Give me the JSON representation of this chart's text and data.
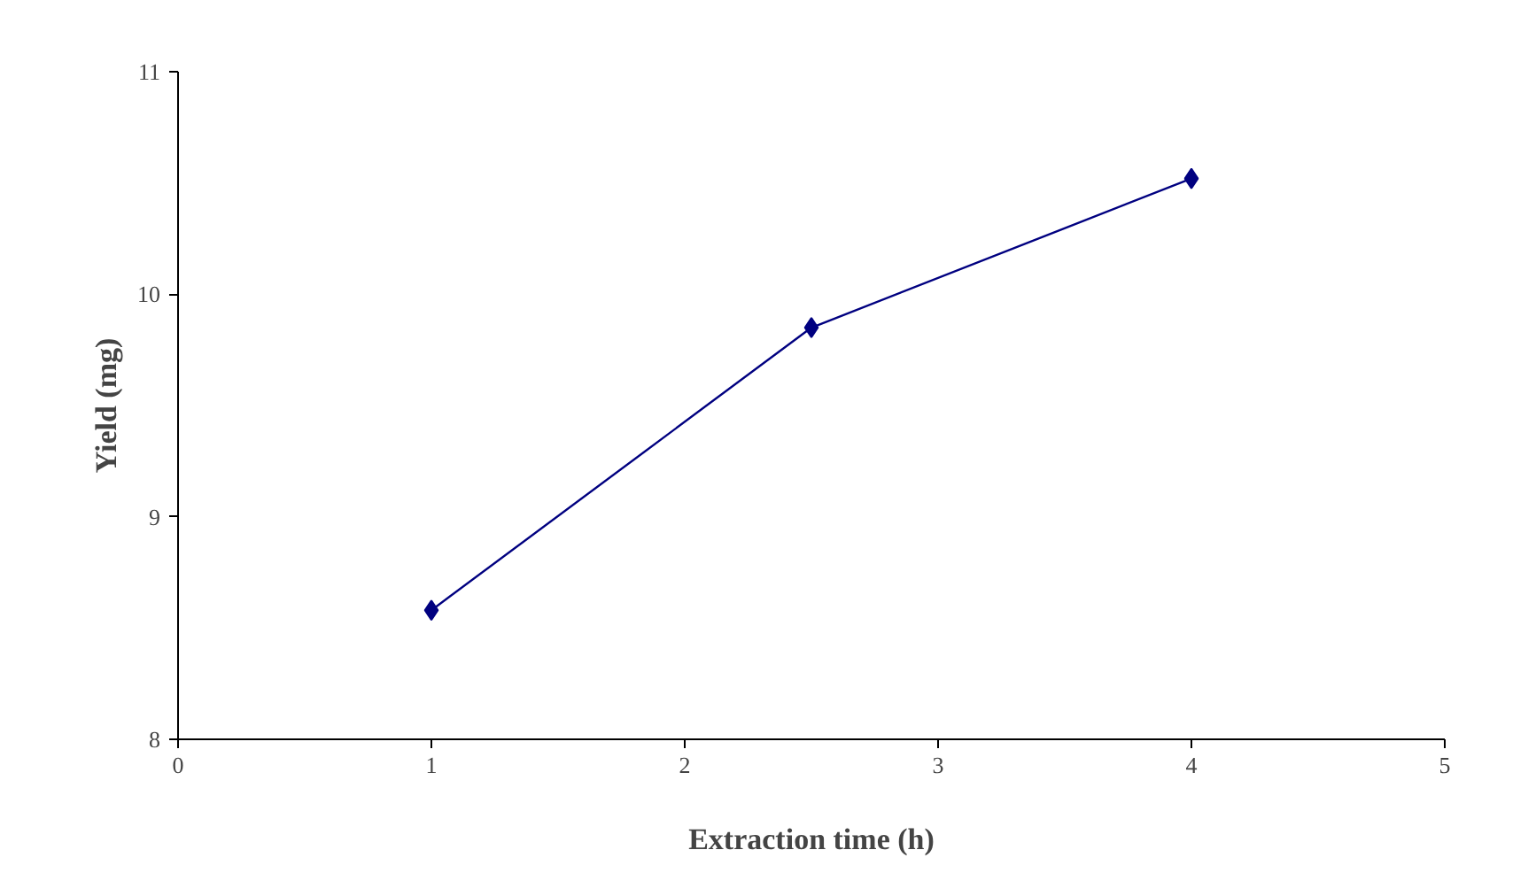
{
  "chart_data": {
    "type": "line",
    "xlabel": "Extraction time (h)",
    "ylabel": "Yield (mg)",
    "x": [
      1,
      2.5,
      4
    ],
    "series": [
      {
        "color": "#000080",
        "values": [
          8.58,
          9.85,
          10.52
        ]
      }
    ],
    "xlim": [
      0,
      5
    ],
    "ylim": [
      8,
      11
    ],
    "xticks": [
      0,
      1,
      2,
      3,
      4,
      5
    ],
    "yticks": [
      8,
      9,
      10,
      11
    ],
    "marker": "diamond",
    "line_style": "solid"
  }
}
